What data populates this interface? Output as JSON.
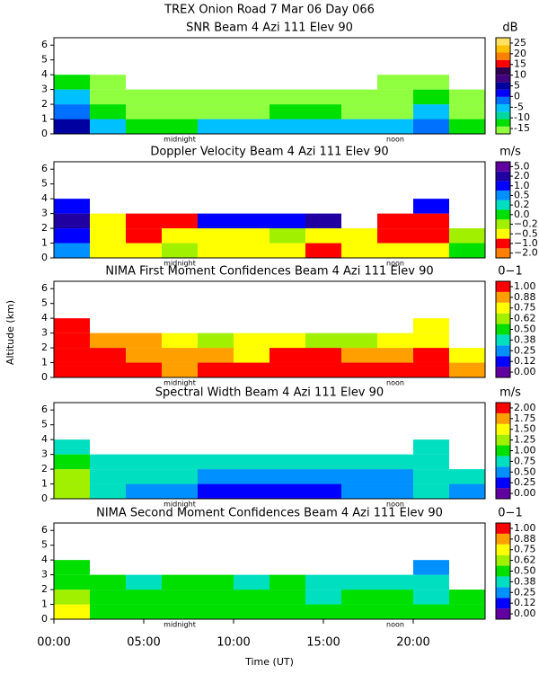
{
  "title": "TREX Onion Road   7 Mar 06 Day 066",
  "ylabel": "Altitude (km)",
  "chart_data": [
    {
      "type": "heatmap",
      "title": "SNR Beam 4 Azi 111 Elev 90",
      "unit": "dB",
      "x": [
        1,
        3,
        5,
        7,
        9,
        11,
        13,
        15,
        17,
        19,
        21,
        23
      ],
      "y": [
        0.5,
        1.5,
        2.5,
        3.5
      ],
      "xlim": [
        0,
        24
      ],
      "ylim": [
        0,
        6.5
      ],
      "yticks": [
        0,
        1,
        2,
        3,
        4,
        5,
        6
      ],
      "annotations": [
        {
          "text": "midnight",
          "x": 7
        },
        {
          "text": "noon",
          "x": 19
        }
      ],
      "colorbar_ticks": [
        -15,
        -10,
        -5,
        0,
        5,
        10,
        15,
        20,
        25
      ],
      "colors": [
        "#90ff40",
        "#00e000",
        "#00d8a0",
        "#00c0ff",
        "#0070ff",
        "#0000ff",
        "#0000a0",
        "#400080",
        "#300050",
        "#ff0000",
        "#ff8000",
        "#ffc000",
        "#ffe060"
      ],
      "values": [
        [
          5,
          -5,
          -10,
          -10,
          -5,
          -5,
          -5,
          -5,
          -5,
          -5,
          0,
          -10
        ],
        [
          0,
          -10,
          -12,
          -12,
          -12,
          -12,
          -10,
          -10,
          -12,
          -12,
          -5,
          -12
        ],
        [
          -5,
          -12,
          -13,
          -12,
          -13,
          -12,
          -13,
          -13,
          -13,
          -13,
          -10,
          -13
        ],
        [
          -10,
          -13,
          null,
          null,
          null,
          null,
          null,
          null,
          null,
          -14,
          -13,
          null
        ]
      ]
    },
    {
      "type": "heatmap",
      "title": "Doppler Velocity Beam 4 Azi 111 Elev 90",
      "unit": "m/s",
      "x": [
        1,
        3,
        5,
        7,
        9,
        11,
        13,
        15,
        17,
        19,
        21,
        23
      ],
      "y": [
        0.5,
        1.5,
        2.5,
        3.5
      ],
      "xlim": [
        0,
        24
      ],
      "ylim": [
        0,
        6.5
      ],
      "yticks": [
        0,
        1,
        2,
        3,
        4,
        5,
        6
      ],
      "annotations": [
        {
          "text": "midnight",
          "x": 7
        },
        {
          "text": "noon",
          "x": 19
        }
      ],
      "colorbar_ticks": [
        {
          "value": -2,
          "label": "−2.0"
        },
        {
          "value": -1,
          "label": "−1.0"
        },
        {
          "value": -0.5,
          "label": "−0.5"
        },
        {
          "value": -0.2,
          "label": "−0.2"
        },
        {
          "value": 0,
          "label": "0.0"
        },
        {
          "value": 0.2,
          "label": "0.2"
        },
        {
          "value": 0.5,
          "label": "0.5"
        },
        {
          "value": 1,
          "label": "1.0"
        },
        {
          "value": 2,
          "label": "2.0"
        },
        {
          "value": 5,
          "label": "5.0"
        }
      ],
      "colors": [
        "#ff8000",
        "#ff0000",
        "#ffff00",
        "#a0f000",
        "#00e000",
        "#00e0c0",
        "#0090ff",
        "#0000ff",
        "#2000a0",
        "#6000a0"
      ],
      "values": [
        [
          0.5,
          -0.5,
          -0.5,
          -0.2,
          -0.5,
          -0.5,
          -0.5,
          -1,
          -0.5,
          -0.5,
          -0.5,
          0
        ],
        [
          1,
          -0.5,
          -1,
          -0.5,
          -0.5,
          -0.5,
          -0.2,
          -0.5,
          -0.5,
          -1,
          -1,
          -0.2
        ],
        [
          2,
          -0.5,
          -1,
          -1,
          1,
          1,
          1,
          2,
          null,
          -1,
          -1,
          null
        ],
        [
          1,
          null,
          null,
          null,
          null,
          null,
          null,
          null,
          null,
          null,
          1,
          null
        ]
      ]
    },
    {
      "type": "heatmap",
      "title": "NIMA First Moment Confidences Beam 4 Azi 111 Elev 90",
      "unit": "0−1",
      "x": [
        1,
        3,
        5,
        7,
        9,
        11,
        13,
        15,
        17,
        19,
        21,
        23
      ],
      "y": [
        0.5,
        1.5,
        2.5,
        3.5
      ],
      "xlim": [
        0,
        24
      ],
      "ylim": [
        0,
        6.5
      ],
      "yticks": [
        0,
        1,
        2,
        3,
        4,
        5,
        6
      ],
      "annotations": [
        {
          "text": "midnight",
          "x": 7
        },
        {
          "text": "noon",
          "x": 19
        }
      ],
      "colorbar_ticks": [
        {
          "value": 0,
          "label": "0.00"
        },
        0.12,
        0.25,
        0.38,
        {
          "value": 0.5,
          "label": "0.50"
        },
        0.62,
        0.75,
        0.88,
        {
          "value": 1,
          "label": "1.00"
        }
      ],
      "colors": [
        "#6000a0",
        "#0000ff",
        "#0090ff",
        "#00e0c0",
        "#00e000",
        "#a0f000",
        "#ffff00",
        "#ffa000",
        "#ff0000"
      ],
      "values": [
        [
          1,
          1,
          1,
          0.88,
          1,
          1,
          1,
          1,
          1,
          1,
          1,
          0.88
        ],
        [
          1,
          1,
          0.88,
          0.88,
          0.88,
          0.75,
          1,
          1,
          0.88,
          0.88,
          1,
          0.75
        ],
        [
          1,
          0.88,
          0.88,
          0.75,
          0.62,
          0.75,
          0.75,
          0.62,
          0.62,
          0.75,
          0.75,
          null
        ],
        [
          1,
          null,
          null,
          null,
          null,
          null,
          null,
          null,
          null,
          null,
          0.75,
          null
        ]
      ]
    },
    {
      "type": "heatmap",
      "title": "Spectral Width Beam 4 Azi 111 Elev 90",
      "unit": "m/s",
      "x": [
        1,
        3,
        5,
        7,
        9,
        11,
        13,
        15,
        17,
        19,
        21,
        23
      ],
      "y": [
        0.5,
        1.5,
        2.5,
        3.5
      ],
      "xlim": [
        0,
        24
      ],
      "ylim": [
        0,
        6.5
      ],
      "yticks": [
        0,
        1,
        2,
        3,
        4,
        5,
        6
      ],
      "annotations": [
        {
          "text": "midnight",
          "x": 7
        },
        {
          "text": "noon",
          "x": 19
        }
      ],
      "colorbar_ticks": [
        {
          "value": 0,
          "label": "0.00"
        },
        0.25,
        {
          "value": 0.5,
          "label": "0.50"
        },
        0.75,
        {
          "value": 1,
          "label": "1.00"
        },
        1.25,
        {
          "value": 1.5,
          "label": "1.50"
        },
        1.75,
        {
          "value": 2,
          "label": "2.00"
        }
      ],
      "colors": [
        "#6000a0",
        "#0000ff",
        "#0090ff",
        "#00e0c0",
        "#00e000",
        "#a0f000",
        "#ffff00",
        "#ffa000",
        "#ff0000"
      ],
      "values": [
        [
          1.25,
          0.75,
          0.5,
          0.5,
          0.25,
          0.25,
          0.25,
          0.25,
          0.5,
          0.5,
          0.75,
          0.5
        ],
        [
          1.25,
          0.75,
          0.75,
          0.75,
          0.5,
          0.5,
          0.5,
          0.5,
          0.5,
          0.5,
          0.75,
          0.75
        ],
        [
          1,
          0.75,
          0.75,
          0.75,
          0.75,
          0.75,
          0.75,
          0.75,
          0.75,
          0.75,
          0.75,
          null
        ],
        [
          0.75,
          null,
          null,
          null,
          null,
          null,
          null,
          null,
          null,
          null,
          0.75,
          null
        ]
      ]
    },
    {
      "type": "heatmap",
      "title": "NIMA Second Moment Confidences Beam 4 Azi 111 Elev 90",
      "unit": "0−1",
      "x": [
        1,
        3,
        5,
        7,
        9,
        11,
        13,
        15,
        17,
        19,
        21,
        23
      ],
      "y": [
        0.5,
        1.5,
        2.5,
        3.5
      ],
      "xlim": [
        0,
        24
      ],
      "ylim": [
        0,
        6.5
      ],
      "yticks": [
        0,
        1,
        2,
        3,
        4,
        5,
        6
      ],
      "annotations": [
        {
          "text": "midnight",
          "x": 7
        },
        {
          "text": "noon",
          "x": 19
        }
      ],
      "colorbar_ticks": [
        {
          "value": 0,
          "label": "0.00"
        },
        0.12,
        0.25,
        0.38,
        {
          "value": 0.5,
          "label": "0.50"
        },
        0.62,
        0.75,
        0.88,
        {
          "value": 1,
          "label": "1.00"
        }
      ],
      "colors": [
        "#6000a0",
        "#0000ff",
        "#0090ff",
        "#00e0c0",
        "#00e000",
        "#a0f000",
        "#ffff00",
        "#ffa000",
        "#ff0000"
      ],
      "values": [
        [
          0.75,
          0.5,
          0.5,
          0.5,
          0.5,
          0.5,
          0.5,
          0.5,
          0.5,
          0.5,
          0.5,
          0.5
        ],
        [
          0.62,
          0.5,
          0.5,
          0.5,
          0.5,
          0.5,
          0.5,
          0.38,
          0.5,
          0.5,
          0.38,
          0.5
        ],
        [
          0.5,
          0.5,
          0.38,
          0.5,
          0.5,
          0.38,
          0.5,
          0.38,
          0.38,
          0.38,
          0.38,
          null
        ],
        [
          0.5,
          null,
          null,
          null,
          null,
          null,
          null,
          null,
          null,
          null,
          0.25,
          null
        ]
      ],
      "xticks": [
        {
          "value": 0,
          "label": "00:00"
        },
        {
          "value": 5,
          "label": "05:00"
        },
        {
          "value": 10,
          "label": "10:00"
        },
        {
          "value": 15,
          "label": "15:00"
        },
        {
          "value": 20,
          "label": "20:00"
        }
      ],
      "xlabel": "Time (UT)"
    }
  ]
}
